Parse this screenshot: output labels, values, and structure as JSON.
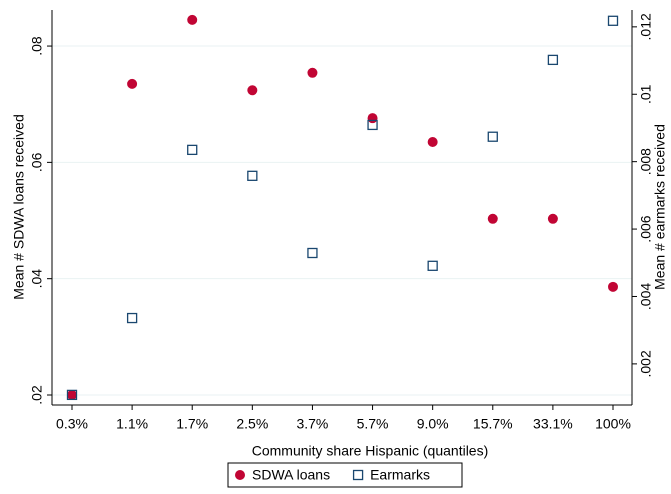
{
  "chart_data": {
    "type": "scatter",
    "x_label": "Community share Hispanic (quantiles)",
    "y_label": "Mean # SDWA loans received",
    "y2_label": "Mean # earmarks received",
    "categories": [
      "0.3%",
      "1.1%",
      "1.7%",
      "2.5%",
      "3.7%",
      "5.7%",
      "9.0%",
      "15.7%",
      "33.1%",
      "100%"
    ],
    "series": [
      {
        "name": "SDWA loans",
        "color": "#c10534",
        "marker": "circle",
        "values": [
          0.02,
          0.0735,
          0.0845,
          0.0724,
          0.0754,
          0.0676,
          0.0635,
          0.0503,
          0.0503,
          0.0386
        ]
      },
      {
        "name": "Earmarks",
        "color": "#1a476f",
        "marker": "square",
        "axis": "y2",
        "values": [
          0.00108,
          0.00336,
          0.00835,
          0.00758,
          0.00529,
          0.00909,
          0.00491,
          0.00874,
          0.01102,
          0.01218
        ]
      }
    ],
    "ylim": [
      0.01828,
      0.0862
    ],
    "yticks": [
      {
        "value": 0.02,
        "label": ".02"
      },
      {
        "value": 0.04,
        "label": ".04"
      },
      {
        "value": 0.06,
        "label": ".06"
      },
      {
        "value": 0.08,
        "label": ".08"
      }
    ],
    "y2lim": [
      0.00078,
      0.0125
    ],
    "y2ticks": [
      {
        "value": 0.002,
        "label": ".002"
      },
      {
        "value": 0.004,
        "label": ".004"
      },
      {
        "value": 0.006,
        "label": ".006"
      },
      {
        "value": 0.008,
        "label": ".008"
      },
      {
        "value": 0.01,
        "label": ".01"
      },
      {
        "value": 0.012,
        "label": ".012"
      }
    ],
    "grid": true,
    "legend": "bottom"
  }
}
